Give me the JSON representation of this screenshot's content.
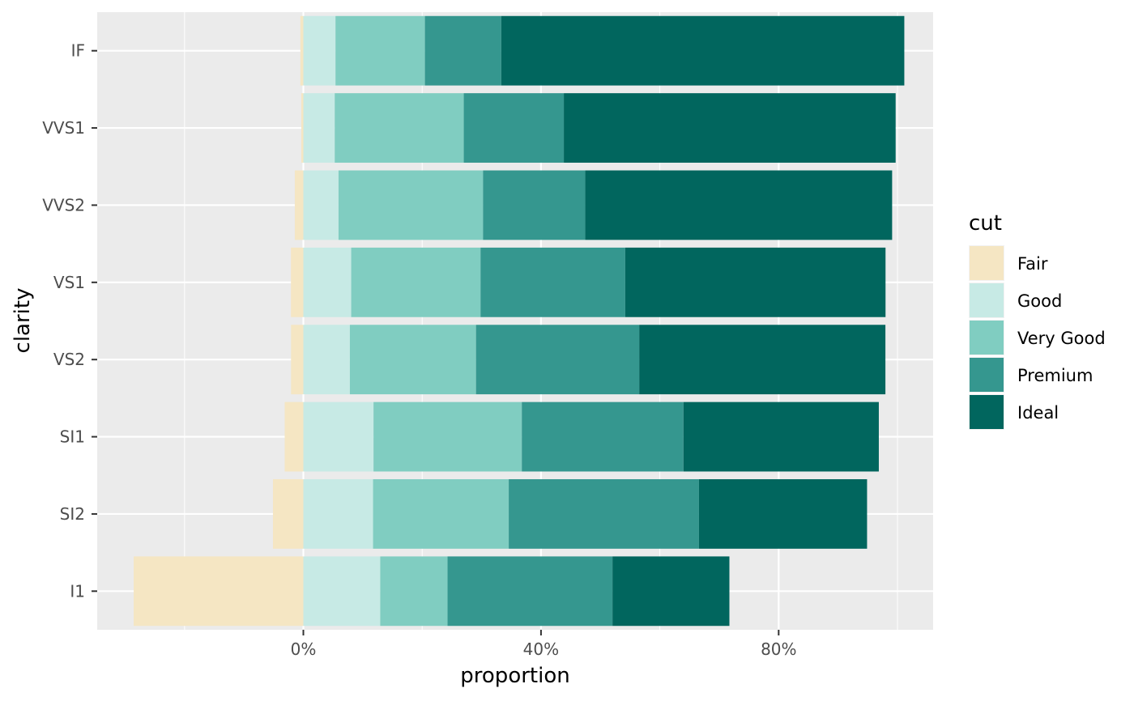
{
  "chart_data": {
    "type": "bar",
    "orientation": "horizontal",
    "stacked": true,
    "diverging": true,
    "title": "",
    "xlabel": "proportion",
    "ylabel": "clarity",
    "xlim": [
      -0.347,
      1.06
    ],
    "x_ticks": [
      0,
      0.4,
      0.8
    ],
    "x_tick_labels": [
      "0%",
      "40%",
      "80%"
    ],
    "x_minor_ticks": [
      -0.2,
      0.2,
      0.6,
      1.0
    ],
    "grid": true,
    "legend": {
      "title": "cut",
      "position": "right"
    },
    "categories": [
      "IF",
      "VVS1",
      "VVS2",
      "VS1",
      "VS2",
      "SI1",
      "SI2",
      "I1"
    ],
    "series": [
      {
        "name": "Fair",
        "color": "#f5e6c3",
        "negative": true,
        "values": [
          0.005,
          0.0035,
          0.0144,
          0.0209,
          0.0208,
          0.0314,
          0.0512,
          0.2856
        ]
      },
      {
        "name": "Good",
        "color": "#c7eae5",
        "values": [
          0.0541,
          0.0528,
          0.0592,
          0.0805,
          0.0783,
          0.1181,
          0.1173,
          0.1294
        ]
      },
      {
        "name": "Very Good",
        "color": "#80cdc1",
        "values": [
          0.1505,
          0.2172,
          0.2432,
          0.2177,
          0.2123,
          0.2496,
          0.2284,
          0.1133
        ]
      },
      {
        "name": "Premium",
        "color": "#35978f",
        "values": [
          0.1284,
          0.1684,
          0.1721,
          0.2436,
          0.2747,
          0.2721,
          0.3202,
          0.2776
        ]
      },
      {
        "name": "Ideal",
        "color": "#01665e",
        "values": [
          0.6785,
          0.5585,
          0.5165,
          0.4381,
          0.4144,
          0.3288,
          0.2829,
          0.1968
        ]
      }
    ]
  }
}
